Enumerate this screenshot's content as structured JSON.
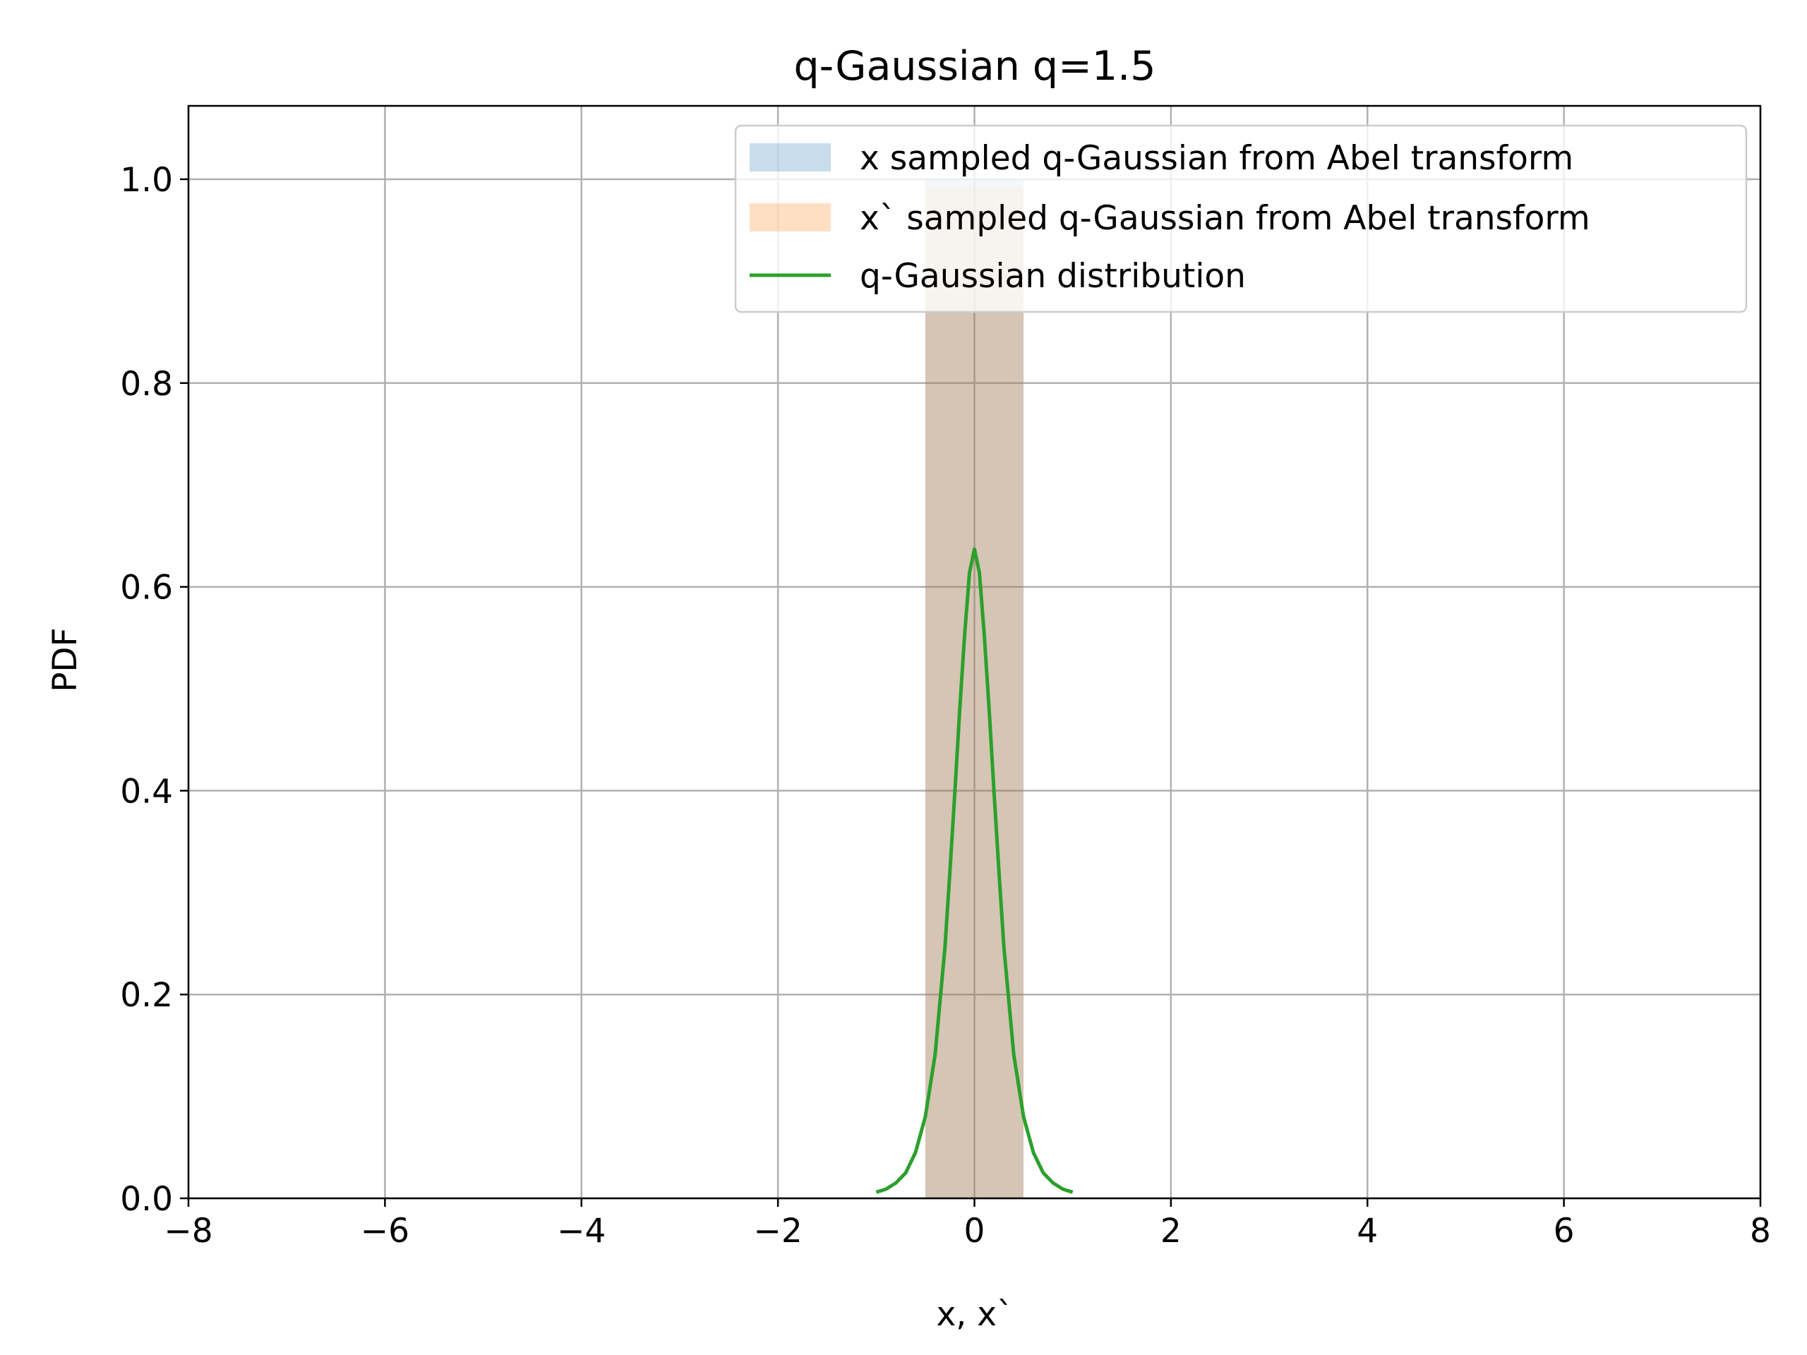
{
  "chart_data": {
    "type": "bar",
    "title": "q-Gaussian q=1.5",
    "xlabel": "x, x`",
    "ylabel": "PDF",
    "xlim": [
      -8,
      8
    ],
    "ylim": [
      0,
      1.072
    ],
    "xticks": [
      -8,
      -6,
      -4,
      -2,
      0,
      2,
      4,
      6,
      8
    ],
    "xtick_labels": [
      "−8",
      "−6",
      "−4",
      "−2",
      "0",
      "2",
      "4",
      "6",
      "8"
    ],
    "yticks": [
      0.0,
      0.2,
      0.4,
      0.6,
      0.8,
      1.0
    ],
    "ytick_labels": [
      "0.0",
      "0.2",
      "0.4",
      "0.6",
      "0.8",
      "1.0"
    ],
    "grid": true,
    "legend_position": "top-right",
    "histograms": [
      {
        "name": "x sampled q-Gaussian from Abel transform",
        "color": "#1f77b4",
        "opacity": 0.25,
        "bins": [
          {
            "x0": -0.5,
            "x1": 0.5,
            "value": 1.0
          }
        ]
      },
      {
        "name": "x` sampled q-Gaussian from Abel transform",
        "color": "#ff7f0e",
        "opacity": 0.25,
        "bins": [
          {
            "x0": -0.5,
            "x1": 0.5,
            "value": 0.993
          }
        ]
      }
    ],
    "series": [
      {
        "name": "q-Gaussian distribution",
        "type": "line",
        "color": "#2ca02c",
        "x": [
          -1.0,
          -0.9,
          -0.8,
          -0.7,
          -0.6,
          -0.5,
          -0.4,
          -0.3,
          -0.25,
          -0.2,
          -0.15,
          -0.1,
          -0.05,
          0.0,
          0.05,
          0.1,
          0.15,
          0.2,
          0.25,
          0.3,
          0.4,
          0.5,
          0.6,
          0.7,
          0.8,
          0.9,
          1.0
        ],
        "y": [
          0.006,
          0.009,
          0.015,
          0.025,
          0.045,
          0.08,
          0.141,
          0.246,
          0.32,
          0.398,
          0.479,
          0.553,
          0.614,
          0.637,
          0.614,
          0.553,
          0.479,
          0.398,
          0.32,
          0.246,
          0.141,
          0.08,
          0.045,
          0.025,
          0.015,
          0.009,
          0.006
        ]
      }
    ]
  }
}
